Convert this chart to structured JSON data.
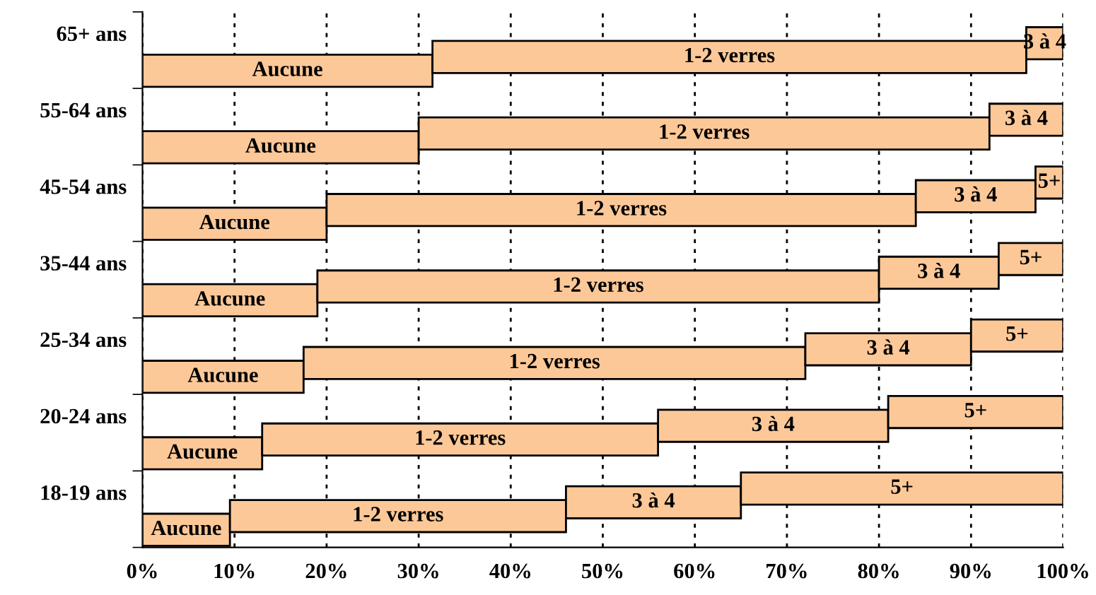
{
  "chart_data": {
    "type": "bar",
    "orientation": "horizontal",
    "stacked": true,
    "categories": [
      "65+ ans",
      "55-64 ans",
      "45-54 ans",
      "35-44 ans",
      "25-34 ans",
      "20-24 ans",
      "18-19 ans"
    ],
    "series": [
      {
        "name": "Aucune",
        "color": "#fdc898",
        "values": [
          31.5,
          30,
          20,
          19,
          17.5,
          13,
          9.5
        ]
      },
      {
        "name": "1-2 verres",
        "color": "#fdc898",
        "values": [
          64.5,
          62,
          64,
          61,
          54.5,
          43,
          36.5
        ]
      },
      {
        "name": "3 à 4",
        "color": "#fdc898",
        "values": [
          4,
          8,
          13,
          13,
          18,
          25,
          19
        ]
      },
      {
        "name": "5+",
        "color": "#fdc898",
        "values": [
          null,
          null,
          3,
          7,
          10,
          19,
          35
        ]
      }
    ],
    "xlim": [
      0,
      100
    ],
    "xticks": [
      {
        "value": 0,
        "label": "0%"
      },
      {
        "value": 10,
        "label": "10%"
      },
      {
        "value": 20,
        "label": "20%"
      },
      {
        "value": 30,
        "label": "30%"
      },
      {
        "value": 40,
        "label": "40%"
      },
      {
        "value": 50,
        "label": "50%"
      },
      {
        "value": 60,
        "label": "60%"
      },
      {
        "value": 70,
        "label": "70%"
      },
      {
        "value": 80,
        "label": "80%"
      },
      {
        "value": 90,
        "label": "90%"
      },
      {
        "value": 100,
        "label": "100%"
      }
    ],
    "grid": "x",
    "legend": false
  }
}
